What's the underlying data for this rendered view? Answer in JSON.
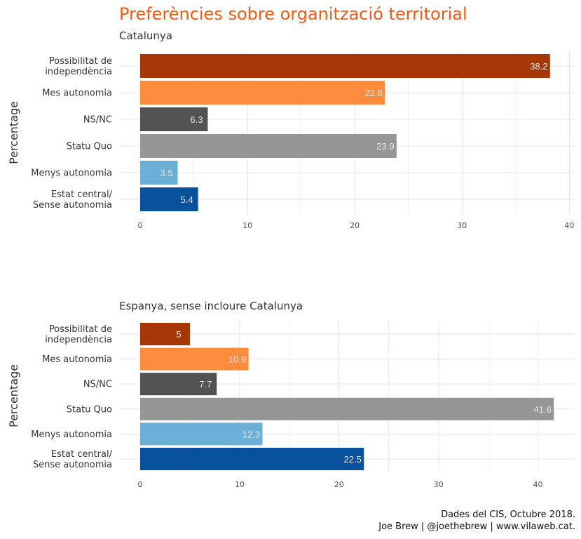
{
  "title": "Preferències sobre organització territorial",
  "caption": {
    "line1": "Dades del CIS, Octubre 2018.",
    "line2": "Joe Brew | @joethebrew | www.vilaweb.cat."
  },
  "colors": {
    "title": "#f05a14",
    "categories": [
      "#a63603",
      "#fd8d3c",
      "#525252",
      "#969696",
      "#6baed6",
      "#08519c"
    ],
    "bar_label": "#e8e8e8",
    "grid": "#ebebeb"
  },
  "chart_data": [
    {
      "type": "bar",
      "orientation": "horizontal",
      "subtitle": "Catalunya",
      "ylabel": "Percentage",
      "xlabel": "",
      "categories": [
        [
          "Possibilitat de",
          "independència"
        ],
        [
          "Mes autonomia"
        ],
        [
          "NS/NC"
        ],
        [
          "Statu Quo"
        ],
        [
          "Menys autonomia"
        ],
        [
          "Estat central/",
          "Sense autonomia"
        ]
      ],
      "values": [
        38.2,
        22.8,
        6.3,
        23.9,
        3.5,
        5.4
      ],
      "data_labels": [
        "38.2",
        "22.8",
        "6.3",
        "23.9",
        "3.5",
        "5.4"
      ],
      "xlim": [
        0,
        40.5
      ],
      "xticks": [
        0,
        10,
        20,
        30,
        40
      ],
      "grid": true
    },
    {
      "type": "bar",
      "orientation": "horizontal",
      "subtitle": "Espanya, sense incloure Catalunya",
      "ylabel": "Percentage",
      "xlabel": "",
      "categories": [
        [
          "Possibilitat de",
          "independència"
        ],
        [
          "Mes autonomia"
        ],
        [
          "NS/NC"
        ],
        [
          "Statu Quo"
        ],
        [
          "Menys autonomia"
        ],
        [
          "Estat central/",
          "Sense autonomia"
        ]
      ],
      "values": [
        5,
        10.9,
        7.7,
        41.6,
        12.3,
        22.5
      ],
      "data_labels": [
        "5",
        "10.9",
        "7.7",
        "41.6",
        "12.3",
        "22.5"
      ],
      "xlim": [
        0,
        43.7
      ],
      "xticks": [
        0,
        10,
        20,
        30,
        40
      ],
      "grid": true
    }
  ]
}
